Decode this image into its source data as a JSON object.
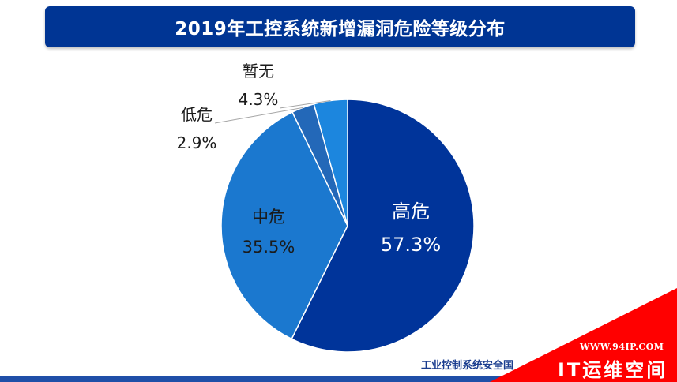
{
  "header": {
    "title": "2019年工控系统新增漏洞危险等级分布"
  },
  "chart_data": {
    "type": "pie",
    "title": "2019年工控系统新增漏洞危险等级分布",
    "slices": [
      {
        "label": "高危",
        "value": 57.3,
        "value_label": "57.3%",
        "color": "#00349A"
      },
      {
        "label": "中危",
        "value": 35.5,
        "value_label": "35.5%",
        "color": "#1B78CF"
      },
      {
        "label": "低危",
        "value": 2.9,
        "value_label": "2.9%",
        "color": "#2368B8"
      },
      {
        "label": "暂无",
        "value": 4.3,
        "value_label": "4.3%",
        "color": "#1C86DE"
      }
    ]
  },
  "footer": {
    "source": "工业控制系统安全国"
  },
  "watermark": {
    "url": "WWW.94IP.COM",
    "brand": "IT运维空间",
    "color": "#FF0000"
  }
}
